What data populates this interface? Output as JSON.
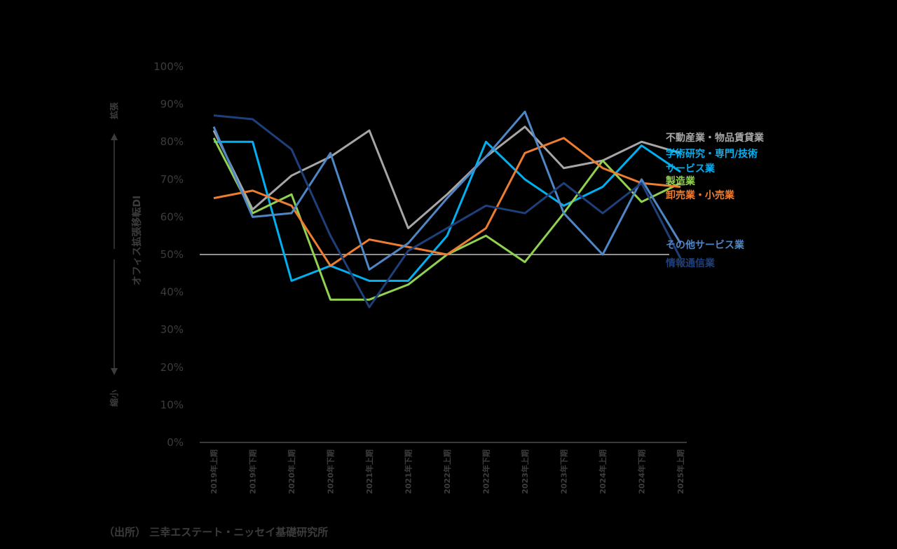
{
  "chart_data": {
    "type": "line",
    "title": "",
    "ylabel": "オフィス拡張移転DI",
    "ylim": [
      0,
      100
    ],
    "yticks": [
      "0%",
      "10%",
      "20%",
      "30%",
      "40%",
      "50%",
      "60%",
      "70%",
      "80%",
      "90%",
      "100%"
    ],
    "categories": [
      "2019年上期",
      "2019年下期",
      "2020年上期",
      "2020年下期",
      "2021年上期",
      "2021年下期",
      "2022年上期",
      "2022年下期",
      "2023年上期",
      "2023年下期",
      "2024年上期",
      "2024年下期",
      "2025年上期"
    ],
    "reference_line": 50,
    "arrow_top_label": "拡張",
    "arrow_bottom_label": "縮小",
    "series": [
      {
        "name": "不動産業・物品賃貸業",
        "color": "#a6a6a6",
        "values": [
          83,
          62,
          71,
          76,
          83,
          57,
          66,
          76,
          84,
          73,
          75,
          80,
          77
        ]
      },
      {
        "name": "学術研究・専門/技術サービス業",
        "color": "#00b0f0",
        "values": [
          80,
          80,
          43,
          47,
          43,
          43,
          55,
          80,
          70,
          63,
          68,
          79,
          72
        ]
      },
      {
        "name": "製造業",
        "color": "#92d050",
        "values": [
          81,
          61,
          66,
          38,
          38,
          42,
          50,
          55,
          48,
          61,
          75,
          64,
          69
        ]
      },
      {
        "name": "卸売業・小売業",
        "color": "#ed7d31",
        "values": [
          65,
          67,
          63,
          47,
          54,
          52,
          50,
          57,
          77,
          81,
          73,
          69,
          68
        ]
      },
      {
        "name": "その他サービス業",
        "color": "#4f86c6",
        "values": [
          84,
          60,
          61,
          77,
          46,
          53,
          65,
          76,
          88,
          61,
          50,
          70,
          53
        ]
      },
      {
        "name": "情報通信業",
        "color": "#1f3f7a",
        "values": [
          87,
          86,
          78,
          55,
          36,
          51,
          57,
          63,
          61,
          69,
          61,
          69,
          49
        ]
      }
    ]
  },
  "source": "（出所） 三幸エステート・ニッセイ基礎研究所"
}
